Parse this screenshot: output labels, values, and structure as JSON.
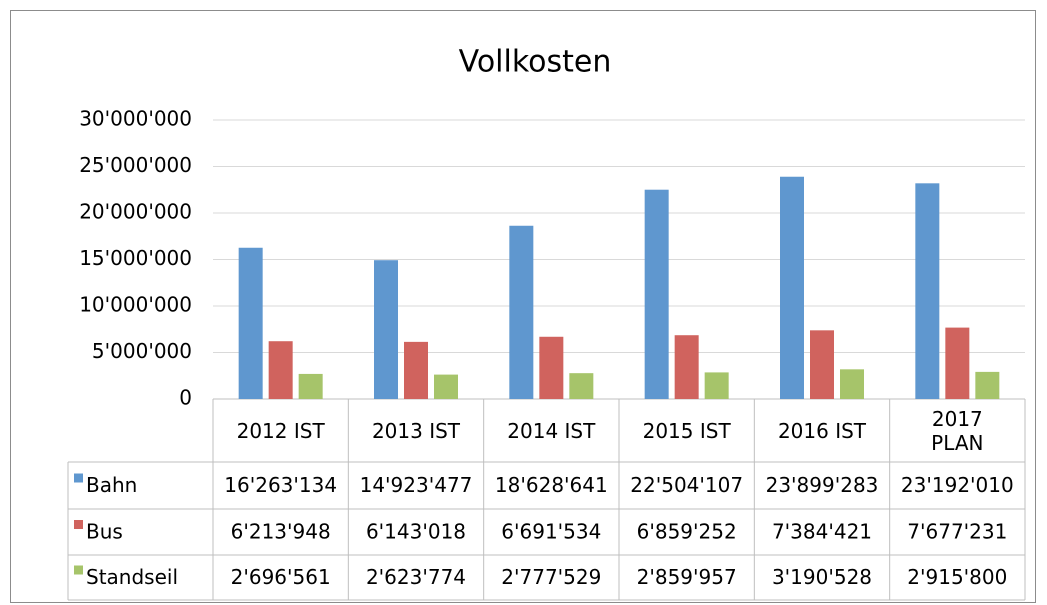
{
  "chart_data": {
    "type": "bar",
    "title": "Vollkosten",
    "categories": [
      "2012 IST",
      "2013 IST",
      "2014 IST",
      "2015 IST",
      "2016 IST",
      "2017 PLAN"
    ],
    "series": [
      {
        "name": "Bahn",
        "color": "#5f97cf",
        "values": [
          16263134,
          14923477,
          18628641,
          22504107,
          23899283,
          23192010
        ],
        "value_labels": [
          "16'263'134",
          "14'923'477",
          "18'628'641",
          "22'504'107",
          "23'899'283",
          "23'192'010"
        ]
      },
      {
        "name": "Bus",
        "color": "#d0635e",
        "values": [
          6213948,
          6143018,
          6691534,
          6859252,
          7384421,
          7677231
        ],
        "value_labels": [
          "6'213'948",
          "6'143'018",
          "6'691'534",
          "6'859'252",
          "7'384'421",
          "7'677'231"
        ]
      },
      {
        "name": "Standseil",
        "color": "#a6c46a",
        "values": [
          2696561,
          2623774,
          2777529,
          2859957,
          3190528,
          2915800
        ],
        "value_labels": [
          "2'696'561",
          "2'623'774",
          "2'777'529",
          "2'859'957",
          "3'190'528",
          "2'915'800"
        ]
      }
    ],
    "ylim": [
      0,
      30000000
    ],
    "yticks": [
      0,
      {
        "value": 5000000,
        "label": "5'000'000"
      },
      {
        "value": 10000000,
        "label": "10'000'000"
      },
      {
        "value": 15000000,
        "label": "15'000'000"
      },
      {
        "value": 20000000,
        "label": "20'000'000"
      },
      {
        "value": 25000000,
        "label": "25'000'000"
      },
      {
        "value": 30000000,
        "label": "30'000'000"
      }
    ],
    "grid": true
  }
}
